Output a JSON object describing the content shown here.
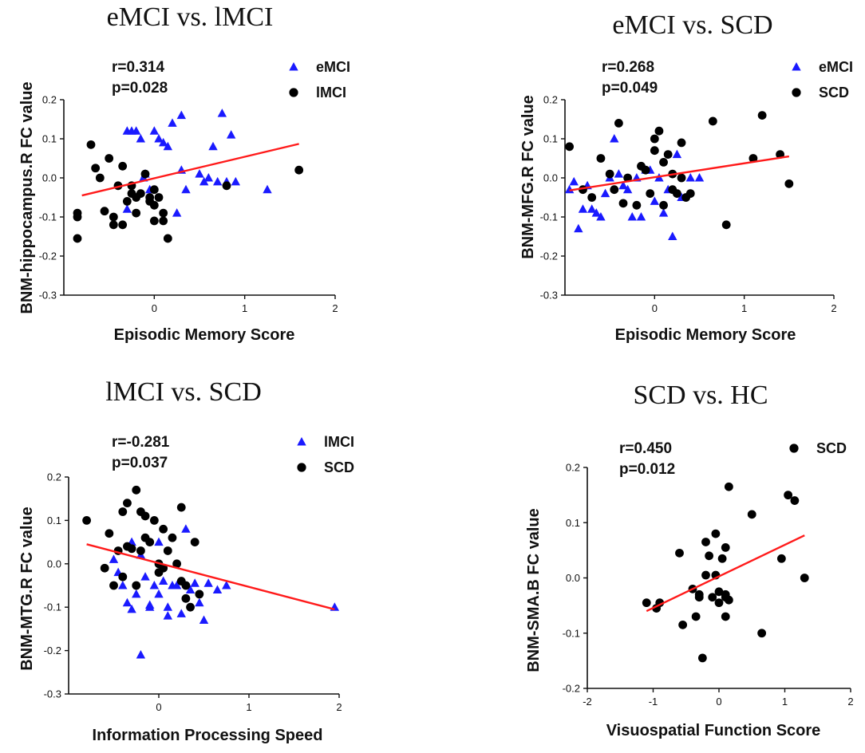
{
  "figure": {
    "background": "#ffffff",
    "colors": {
      "circle": "#000000",
      "triangle": "#1a1aff",
      "fit_line": "#ff1a1a",
      "axis": "#111111"
    }
  },
  "chart_data": [
    {
      "type": "scatter",
      "title": "eMCI vs. lMCI",
      "xlabel": "Episodic Memory Score",
      "ylabel": "BNM-hippocampus.R FC value",
      "xlim": [
        -1.0,
        2.0
      ],
      "ylim": [
        -0.3,
        0.2
      ],
      "xticks": [
        0,
        1,
        2
      ],
      "yticks": [
        -0.3,
        -0.2,
        -0.1,
        0.0,
        0.1,
        0.2
      ],
      "xtick_labels": [
        "0",
        "1",
        "2"
      ],
      "ytick_labels": [
        "-0.3",
        "-0.2",
        "-0.1",
        "0.0",
        "0.1",
        "0.2"
      ],
      "stats": {
        "r": "r=0.314",
        "p": "p=0.028"
      },
      "fit_line": {
        "x": [
          -0.8,
          1.6
        ],
        "y": [
          -0.045,
          0.087
        ]
      },
      "series": [
        {
          "name": "eMCI",
          "marker": "triangle",
          "x": [
            -0.3,
            -0.25,
            -0.2,
            -0.15,
            -0.1,
            -0.05,
            0.0,
            0.05,
            0.1,
            0.15,
            0.2,
            0.3,
            0.35,
            0.5,
            0.55,
            0.6,
            0.65,
            0.7,
            0.75,
            0.8,
            0.85,
            0.9,
            1.25,
            0.25,
            0.3,
            -0.12,
            -0.3
          ],
          "y": [
            0.12,
            0.12,
            0.12,
            0.1,
            0.01,
            -0.03,
            0.12,
            0.1,
            0.09,
            0.08,
            0.14,
            0.16,
            -0.03,
            0.01,
            -0.01,
            0.0,
            0.08,
            -0.01,
            0.165,
            -0.01,
            0.11,
            -0.01,
            -0.03,
            -0.09,
            0.02,
            0.0,
            -0.08
          ]
        },
        {
          "name": "lMCI",
          "marker": "circle",
          "x": [
            -0.85,
            -0.85,
            -0.85,
            -0.7,
            -0.65,
            -0.6,
            -0.55,
            -0.5,
            -0.45,
            -0.4,
            -0.35,
            -0.3,
            -0.25,
            -0.2,
            -0.15,
            -0.1,
            -0.05,
            0.0,
            0.05,
            0.1,
            0.15,
            -0.45,
            -0.35,
            -0.2,
            -0.05,
            0.0,
            0.1,
            0.8,
            1.6,
            -0.25,
            0.0
          ],
          "y": [
            -0.1,
            -0.09,
            -0.155,
            0.085,
            0.025,
            0.0,
            -0.085,
            0.05,
            -0.1,
            -0.02,
            0.03,
            -0.06,
            -0.04,
            -0.05,
            -0.04,
            0.01,
            -0.06,
            -0.07,
            -0.05,
            -0.11,
            -0.155,
            -0.12,
            -0.12,
            -0.09,
            -0.05,
            -0.11,
            -0.09,
            -0.02,
            0.02,
            -0.02,
            -0.03
          ]
        }
      ]
    },
    {
      "type": "scatter",
      "title": "eMCI vs. SCD",
      "xlabel": "Episodic Memory Score",
      "ylabel": "BNM-MFG.R FC value",
      "xlim": [
        -1.0,
        2.0
      ],
      "ylim": [
        -0.3,
        0.2
      ],
      "xticks": [
        0,
        1,
        2
      ],
      "yticks": [
        -0.3,
        -0.2,
        -0.1,
        0.0,
        0.1,
        0.2
      ],
      "xtick_labels": [
        "0",
        "1",
        "2"
      ],
      "ytick_labels": [
        "-0.3",
        "-0.2",
        "-0.1",
        "0.0",
        "0.1",
        "0.2"
      ],
      "stats": {
        "r": "r=0.268",
        "p": "p=0.049"
      },
      "fit_line": {
        "x": [
          -0.95,
          1.5
        ],
        "y": [
          -0.032,
          0.055
        ]
      },
      "series": [
        {
          "name": "eMCI",
          "marker": "triangle",
          "x": [
            -0.95,
            -0.9,
            -0.85,
            -0.8,
            -0.75,
            -0.7,
            -0.65,
            -0.6,
            -0.55,
            -0.5,
            -0.45,
            -0.4,
            -0.35,
            -0.3,
            -0.25,
            -0.2,
            -0.15,
            -0.1,
            -0.05,
            0.0,
            0.05,
            0.1,
            0.15,
            0.2,
            0.25,
            0.3,
            0.4,
            0.5
          ],
          "y": [
            -0.03,
            -0.01,
            -0.13,
            -0.08,
            -0.02,
            -0.08,
            -0.09,
            -0.1,
            -0.04,
            0.0,
            0.1,
            0.01,
            -0.02,
            -0.03,
            -0.1,
            0.0,
            -0.1,
            0.02,
            0.02,
            -0.06,
            0.0,
            -0.09,
            -0.03,
            -0.15,
            0.06,
            -0.05,
            0.0,
            0.0
          ]
        },
        {
          "name": "SCD",
          "marker": "circle",
          "x": [
            -0.95,
            -0.8,
            -0.7,
            -0.6,
            -0.5,
            -0.45,
            -0.4,
            -0.3,
            -0.2,
            -0.15,
            -0.1,
            -0.05,
            0.0,
            0.0,
            0.05,
            0.1,
            0.15,
            0.2,
            0.2,
            0.25,
            0.3,
            0.3,
            0.35,
            0.4,
            0.65,
            0.8,
            1.1,
            1.2,
            1.4,
            1.5,
            -0.35,
            0.1
          ],
          "y": [
            0.08,
            -0.03,
            -0.05,
            0.05,
            0.01,
            -0.03,
            0.14,
            0.0,
            -0.07,
            0.03,
            0.02,
            -0.04,
            0.1,
            0.07,
            0.12,
            0.04,
            0.06,
            0.01,
            -0.03,
            -0.04,
            0.09,
            0.0,
            -0.05,
            -0.04,
            0.145,
            -0.12,
            0.05,
            0.16,
            0.06,
            -0.015,
            -0.065,
            -0.07
          ]
        }
      ]
    },
    {
      "type": "scatter",
      "title": "lMCI vs. SCD",
      "xlabel": "Information Processing Speed",
      "ylabel": "BNM-MTG.R FC value",
      "xlim": [
        -1.0,
        2.0
      ],
      "ylim": [
        -0.3,
        0.2
      ],
      "xticks": [
        0,
        1,
        2
      ],
      "yticks": [
        -0.3,
        -0.2,
        -0.1,
        0.0,
        0.1,
        0.2
      ],
      "xtick_labels": [
        "0",
        "1",
        "2"
      ],
      "ytick_labels": [
        "-0.3",
        "-0.2",
        "-0.1",
        "0.0",
        "0.1",
        "0.2"
      ],
      "stats": {
        "r": "r=-0.281",
        "p": "p=0.037"
      },
      "fit_line": {
        "x": [
          -0.8,
          1.95
        ],
        "y": [
          0.045,
          -0.105
        ]
      },
      "series": [
        {
          "name": "lMCI",
          "marker": "triangle",
          "x": [
            -0.5,
            -0.45,
            -0.4,
            -0.35,
            -0.3,
            -0.25,
            -0.2,
            -0.15,
            -0.1,
            -0.05,
            0.0,
            0.05,
            0.1,
            0.15,
            0.2,
            0.25,
            0.3,
            0.35,
            0.4,
            0.45,
            0.5,
            0.55,
            0.65,
            0.75,
            -0.2,
            -0.3,
            0.0,
            1.95,
            -0.1,
            0.1
          ],
          "y": [
            0.01,
            -0.02,
            -0.05,
            -0.09,
            -0.105,
            -0.07,
            0.02,
            -0.03,
            -0.1,
            -0.05,
            -0.07,
            -0.04,
            -0.1,
            -0.05,
            -0.05,
            -0.115,
            0.08,
            -0.06,
            -0.045,
            -0.09,
            -0.13,
            -0.045,
            -0.06,
            -0.05,
            -0.21,
            0.05,
            0.05,
            -0.1,
            -0.095,
            -0.12
          ]
        },
        {
          "name": "SCD",
          "marker": "circle",
          "x": [
            -0.8,
            -0.6,
            -0.55,
            -0.5,
            -0.45,
            -0.4,
            -0.35,
            -0.3,
            -0.25,
            -0.2,
            -0.15,
            -0.1,
            -0.05,
            0.0,
            0.0,
            0.05,
            0.1,
            0.15,
            0.2,
            0.25,
            0.3,
            0.35,
            0.4,
            0.45,
            -0.35,
            -0.25,
            -0.2,
            0.05,
            0.25,
            0.3,
            -0.15,
            -0.4
          ],
          "y": [
            0.1,
            -0.01,
            0.07,
            -0.05,
            0.03,
            0.12,
            0.04,
            0.035,
            0.17,
            0.03,
            0.06,
            0.05,
            0.1,
            -0.02,
            0.0,
            0.08,
            0.03,
            0.06,
            0.0,
            0.13,
            -0.08,
            -0.1,
            0.05,
            -0.07,
            0.14,
            -0.05,
            0.12,
            -0.01,
            -0.04,
            -0.05,
            0.11,
            -0.03
          ]
        }
      ]
    },
    {
      "type": "scatter",
      "title": "SCD vs. HC",
      "xlabel": "Visuospatial Function Score",
      "ylabel": "BNM-SMA.B FC value",
      "xlim": [
        -2.0,
        2.0
      ],
      "ylim": [
        -0.2,
        0.2
      ],
      "xticks": [
        -2,
        -1,
        0,
        1,
        2
      ],
      "yticks": [
        -0.2,
        -0.1,
        0.0,
        0.1,
        0.2
      ],
      "xtick_labels": [
        "-2",
        "-1",
        "0",
        "1",
        "2"
      ],
      "ytick_labels": [
        "-0.2",
        "-0.1",
        "0.0",
        "0.1",
        "0.2"
      ],
      "stats": {
        "r": "r=0.450",
        "p": "p=0.012"
      },
      "fit_line": {
        "x": [
          -1.1,
          1.3
        ],
        "y": [
          -0.06,
          0.077
        ]
      },
      "series": [
        {
          "name": "SCD",
          "marker": "circle",
          "x": [
            -1.1,
            -0.95,
            -0.9,
            -0.6,
            -0.55,
            -0.4,
            -0.35,
            -0.3,
            -0.25,
            -0.2,
            -0.2,
            -0.15,
            -0.1,
            -0.05,
            -0.05,
            0.0,
            0.0,
            0.05,
            0.1,
            0.1,
            0.1,
            0.15,
            0.15,
            0.5,
            0.65,
            0.95,
            1.05,
            1.15,
            1.3,
            -0.3,
            0.1
          ],
          "y": [
            -0.045,
            -0.055,
            -0.045,
            0.045,
            -0.085,
            -0.02,
            -0.07,
            -0.035,
            -0.145,
            0.005,
            0.065,
            0.04,
            -0.035,
            0.08,
            0.005,
            -0.025,
            -0.045,
            0.035,
            0.055,
            -0.035,
            -0.07,
            0.165,
            -0.04,
            0.115,
            -0.1,
            0.035,
            0.15,
            0.14,
            0.0,
            -0.03,
            -0.03
          ]
        }
      ]
    }
  ]
}
